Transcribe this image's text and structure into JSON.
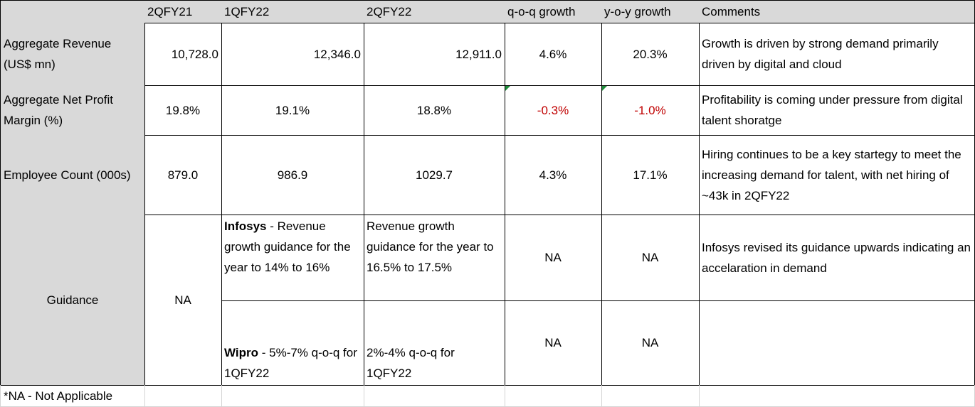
{
  "header": {
    "columns": [
      "2QFY21",
      "1QFY22",
      "2QFY22",
      "q-o-q growth",
      "y-o-y growth",
      "Comments"
    ]
  },
  "rows": [
    {
      "label": "Aggregate Revenue (US$ mn)",
      "values": [
        "10,728.0",
        "12,346.0",
        "12,911.0",
        "4.6%",
        "20.3%"
      ],
      "comment": "Growth is driven by strong demand primarily driven by digital and cloud"
    },
    {
      "label": "Aggregate Net Profit Margin (%)",
      "values": [
        "19.8%",
        "19.1%",
        "18.8%",
        "-0.3%",
        "-1.0%"
      ],
      "comment": "Profitability is coming under pressure from digital talent shoratge"
    },
    {
      "label": "Employee Count (000s)",
      "values": [
        "879.0",
        "986.9",
        "1029.7",
        "4.3%",
        "17.1%"
      ],
      "comment": "Hiring continues to be a key startegy to meet the increasing demand for talent, with net hiring of ~43k in 2QFY22"
    }
  ],
  "guidance": {
    "label": "Guidance",
    "prior": "NA",
    "items": [
      {
        "company": "Infosys",
        "text": " - Revenue growth guidance for the year to 14% to 16%",
        "current": "Revenue growth guidance for the year to 16.5% to 17.5%",
        "qoq": "NA",
        "yoy": "NA",
        "comment": "Infosys revised its guidance upwards indicating an accelaration in demand"
      },
      {
        "company": "Wipro",
        "text": " - 5%-7% q-o-q for 1QFY22",
        "current": "2%-4% q-o-q for 1QFY22",
        "qoq": "NA",
        "yoy": "NA"
      }
    ]
  },
  "footnote": "*NA - Not Applicable"
}
